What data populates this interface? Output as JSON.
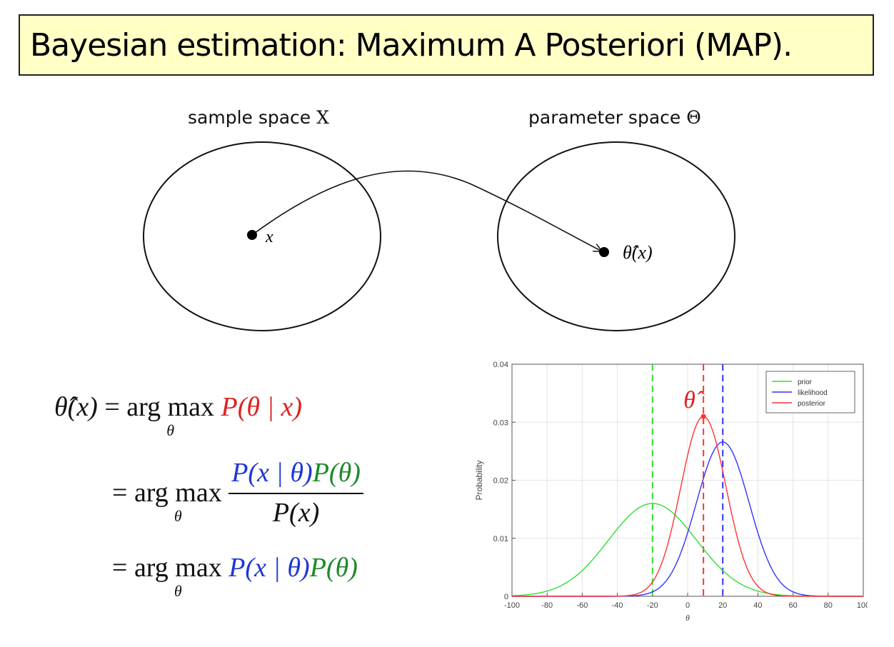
{
  "title": "Bayesian estimation: Maximum A Posteriori (MAP).",
  "diagram": {
    "left_label_text": "sample space ",
    "left_label_symbol": "X",
    "right_label_text": "parameter space ",
    "right_label_symbol": "Θ",
    "point_x_label": "x",
    "point_theta_label": "θ̂(x)"
  },
  "equations": {
    "line1_lhs": "θ̂(x)",
    "eq": "=",
    "argmax": "arg max",
    "argmax_sub": "θ",
    "line1_rhs": "P(θ | x)",
    "line2_num_likelihood": "P(x | θ)",
    "line2_num_prior": "P(θ)",
    "line2_den": "P(x)",
    "line3_likelihood": "P(x | θ)",
    "line3_prior": "P(θ)"
  },
  "chart_data": {
    "type": "line",
    "xlabel": "θ",
    "ylabel": "Probability",
    "xlim": [
      -100,
      100
    ],
    "ylim": [
      0,
      0.04
    ],
    "xticks": [
      -100,
      -80,
      -60,
      -40,
      -20,
      0,
      20,
      40,
      60,
      80,
      100
    ],
    "yticks": [
      0,
      0.01,
      0.02,
      0.03,
      0.04
    ],
    "ytick_labels": [
      "0",
      "0.01",
      "0.02",
      "0.03",
      "0.04"
    ],
    "grid": true,
    "legend_position": "top-right",
    "series": [
      {
        "name": "prior",
        "color": "#33dd33",
        "mean": -20,
        "std": 25,
        "peak": 0.016
      },
      {
        "name": "likelihood",
        "color": "#3333ff",
        "mean": 20,
        "std": 15,
        "peak": 0.0266
      },
      {
        "name": "posterior",
        "color": "#ff3333",
        "mean": 9,
        "std": 12.9,
        "peak": 0.031
      }
    ],
    "vlines": [
      {
        "x": -20,
        "color": "#33dd33"
      },
      {
        "x": 20,
        "color": "#3333ff"
      },
      {
        "x": 9,
        "color": "#ff3333"
      }
    ],
    "map_point": {
      "x": 9,
      "y": 0.031
    },
    "annotation": "θ̂"
  }
}
